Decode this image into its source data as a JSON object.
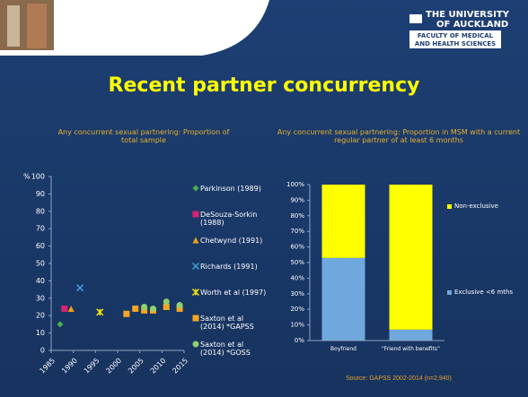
{
  "header": {
    "logo_line1": "THE UNIVERSITY",
    "logo_line2": "OF AUCKLAND",
    "faculty_line1": "FACULTY OF MEDICAL",
    "faculty_line2": "AND HEALTH SCIENCES"
  },
  "title": "Recent partner concurrency",
  "chart_data": [
    {
      "type": "scatter",
      "title": "Any concurrent sexual partnering: Proportion of total sample",
      "ylabel": "%",
      "xlim": [
        1985,
        2015
      ],
      "xticks": [
        1985,
        1990,
        1995,
        2000,
        2005,
        2010,
        2015
      ],
      "ylim": [
        0,
        100
      ],
      "yticks": [
        0,
        10,
        20,
        30,
        40,
        50,
        60,
        70,
        80,
        90,
        100
      ],
      "grid": false,
      "series": [
        {
          "name": "Parkinson (1989)",
          "color": "#4caf50",
          "marker": "diamond",
          "x": [
            1987
          ],
          "values": [
            15
          ]
        },
        {
          "name": "DeSouza-Sorkin (1988)",
          "color": "#d6246e",
          "marker": "square",
          "x": [
            1988
          ],
          "values": [
            24
          ]
        },
        {
          "name": "Chetwynd (1991)",
          "color": "#e8a317",
          "marker": "triangle",
          "x": [
            1989.5
          ],
          "values": [
            24
          ]
        },
        {
          "name": "Richards (1991)",
          "color": "#3aa0d8",
          "marker": "x",
          "x": [
            1991.5
          ],
          "values": [
            36
          ]
        },
        {
          "name": "Worth et al (1997)",
          "color": "#f2e40a",
          "marker": "star",
          "x": [
            1996
          ],
          "values": [
            22
          ]
        },
        {
          "name": "Saxton et al (2014) *GAPSS",
          "color": "#f5a623",
          "marker": "square",
          "x": [
            2002,
            2004,
            2006,
            2008,
            2011,
            2014
          ],
          "values": [
            21,
            24,
            23,
            23,
            25,
            24
          ]
        },
        {
          "name": "Saxton et al (2014) *GOSS",
          "color": "#8ed16f",
          "marker": "circle",
          "x": [
            2006,
            2008,
            2011,
            2014
          ],
          "values": [
            25,
            24,
            28,
            26
          ]
        }
      ]
    },
    {
      "type": "stacked_bar",
      "title": "Any concurrent sexual partnering: Proportion in MSM with a current regular partner of at least 6 months",
      "categories": [
        "Boyfriend",
        "“Friend with benefits”"
      ],
      "ylim": [
        0,
        100
      ],
      "yticks": [
        {
          "value": 0,
          "label": "0%"
        },
        {
          "value": 10,
          "label": "10%"
        },
        {
          "value": 20,
          "label": "20%"
        },
        {
          "value": 30,
          "label": "30%"
        },
        {
          "value": 40,
          "label": "40%"
        },
        {
          "value": 50,
          "label": "50%"
        },
        {
          "value": 60,
          "label": "60%"
        },
        {
          "value": 70,
          "label": "70%"
        },
        {
          "value": 80,
          "label": "80%"
        },
        {
          "value": 90,
          "label": "90%"
        },
        {
          "value": 100,
          "label": "100%"
        }
      ],
      "series": [
        {
          "name": "Exclusive <6 mths",
          "color": "#6fa8dc",
          "values": [
            53,
            7
          ]
        },
        {
          "name": "Non-exclusive",
          "color": "#ffff00",
          "values": [
            47,
            93
          ]
        }
      ],
      "source": "Source: GAPSS 2002-2014 (n=2,940)"
    }
  ]
}
